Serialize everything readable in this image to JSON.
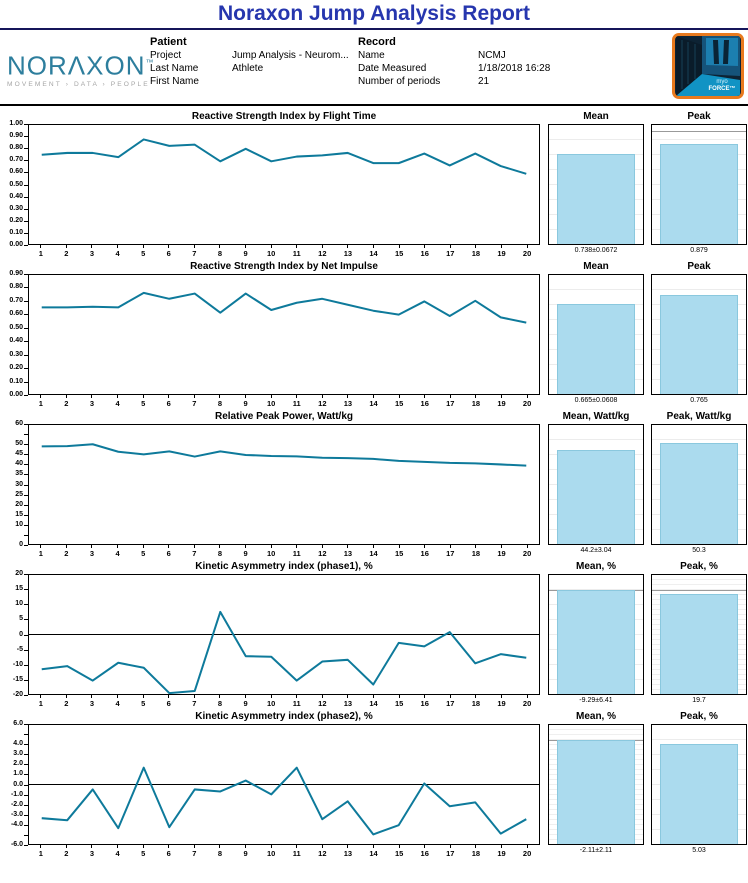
{
  "report": {
    "title": "Noraxon Jump Analysis Report"
  },
  "colors": {
    "title_blue": "#2636ae",
    "brand_teal": "#2d7e9d",
    "line_teal": "#0e7a9b",
    "bar_fill": "#abdbee",
    "bar_border": "#8ac8de",
    "logo_border_orange": "#e87a1e"
  },
  "header": {
    "brand": {
      "name": "NORAXON",
      "trademark": "™",
      "tagline": "MOVEMENT › DATA › PEOPLE"
    },
    "patient": {
      "section_label": "Patient",
      "fields": [
        {
          "label": "Project",
          "value": "Jump Analysis - Neurom..."
        },
        {
          "label": "Last Name",
          "value": "Athlete"
        },
        {
          "label": "First Name",
          "value": ""
        }
      ]
    },
    "record": {
      "section_label": "Record",
      "fields": [
        {
          "label": "Name",
          "value": "NCMJ"
        },
        {
          "label": "Date Measured",
          "value": "1/18/2018 16:28"
        },
        {
          "label": "Number of periods",
          "value": "21"
        }
      ]
    },
    "myoforce_logo": {
      "line1": "myo",
      "line2": "FORCE™"
    }
  },
  "chart_data": [
    {
      "type": "line",
      "title": "Reactive Strength Index by Flight Time",
      "categories": [
        1,
        2,
        3,
        4,
        5,
        6,
        7,
        8,
        9,
        10,
        11,
        12,
        13,
        14,
        15,
        16,
        17,
        18,
        19,
        20
      ],
      "values": [
        0.75,
        0.765,
        0.765,
        0.73,
        0.879,
        0.825,
        0.835,
        0.695,
        0.8,
        0.695,
        0.735,
        0.745,
        0.765,
        0.68,
        0.68,
        0.76,
        0.66,
        0.76,
        0.655,
        0.59
      ],
      "ylim": [
        0,
        1
      ],
      "yticks": [
        {
          "v": 1.0,
          "l": "1.00"
        },
        {
          "v": 0.9,
          "l": "0.90"
        },
        {
          "v": 0.8,
          "l": "0.80"
        },
        {
          "v": 0.7,
          "l": "0.70"
        },
        {
          "v": 0.6,
          "l": "0.60"
        },
        {
          "v": 0.5,
          "l": "0.50"
        },
        {
          "v": 0.4,
          "l": "0.40"
        },
        {
          "v": 0.3,
          "l": "0.30"
        },
        {
          "v": 0.2,
          "l": "0.20"
        },
        {
          "v": 0.1,
          "l": "0.10"
        },
        {
          "v": 0.0,
          "l": "0.00"
        }
      ],
      "zero_line": false,
      "grid": false,
      "legend": "none",
      "mini_bars": [
        {
          "label": "Mean",
          "value_text": "0.738±0.0672",
          "value": 0.738,
          "fill_pct": 76,
          "ref_top_pct": null,
          "fine_grid": false
        },
        {
          "label": "Peak",
          "value_text": "0.879",
          "value": 0.879,
          "fill_pct": 84,
          "ref_top_pct": 5,
          "fine_grid": false
        }
      ]
    },
    {
      "type": "line",
      "title": "Reactive Strength Index by Net Impulse",
      "categories": [
        1,
        2,
        3,
        4,
        5,
        6,
        7,
        8,
        9,
        10,
        11,
        12,
        13,
        14,
        15,
        16,
        17,
        18,
        19,
        20
      ],
      "values": [
        0.655,
        0.655,
        0.66,
        0.655,
        0.765,
        0.72,
        0.76,
        0.615,
        0.76,
        0.635,
        0.69,
        0.72,
        0.675,
        0.63,
        0.6,
        0.7,
        0.59,
        0.705,
        0.58,
        0.54
      ],
      "ylim": [
        0,
        0.9
      ],
      "yticks": [
        {
          "v": 0.9,
          "l": "0.90"
        },
        {
          "v": 0.8,
          "l": "0.80"
        },
        {
          "v": 0.7,
          "l": "0.70"
        },
        {
          "v": 0.6,
          "l": "0.60"
        },
        {
          "v": 0.5,
          "l": "0.50"
        },
        {
          "v": 0.4,
          "l": "0.40"
        },
        {
          "v": 0.3,
          "l": "0.30"
        },
        {
          "v": 0.2,
          "l": "0.20"
        },
        {
          "v": 0.1,
          "l": "0.10"
        },
        {
          "v": 0.0,
          "l": "0.00"
        }
      ],
      "zero_line": false,
      "grid": false,
      "legend": "none",
      "mini_bars": [
        {
          "label": "Mean",
          "value_text": "0.665±0.0608",
          "value": 0.665,
          "fill_pct": 76,
          "ref_top_pct": null,
          "fine_grid": false
        },
        {
          "label": "Peak",
          "value_text": "0.765",
          "value": 0.765,
          "fill_pct": 83,
          "ref_top_pct": null,
          "fine_grid": false
        }
      ]
    },
    {
      "type": "line",
      "title": "Relative Peak Power, Watt/kg",
      "categories": [
        1,
        2,
        3,
        4,
        5,
        6,
        7,
        8,
        9,
        10,
        11,
        12,
        13,
        14,
        15,
        16,
        17,
        18,
        19,
        20
      ],
      "values": [
        49.2,
        49.3,
        50.3,
        46.5,
        45.2,
        46.7,
        44.1,
        46.7,
        44.9,
        44.4,
        44.2,
        43.5,
        43.3,
        42.9,
        41.9,
        41.4,
        40.9,
        40.7,
        40.1,
        39.5
      ],
      "ylim": [
        0,
        60
      ],
      "yticks": [
        {
          "v": 60,
          "l": "60"
        },
        {
          "v": 55,
          "l": ""
        },
        {
          "v": 50,
          "l": "50"
        },
        {
          "v": 45,
          "l": "45"
        },
        {
          "v": 40,
          "l": "40"
        },
        {
          "v": 35,
          "l": "35"
        },
        {
          "v": 30,
          "l": "30"
        },
        {
          "v": 25,
          "l": "25"
        },
        {
          "v": 20,
          "l": "20"
        },
        {
          "v": 15,
          "l": "15"
        },
        {
          "v": 10,
          "l": "10"
        },
        {
          "v": 5,
          "l": ""
        },
        {
          "v": 0,
          "l": "0"
        }
      ],
      "zero_line": false,
      "grid": false,
      "legend": "none",
      "mini_bars": [
        {
          "label": "Mean, Watt/kg",
          "value_text": "44.2±3.04",
          "value": 44.2,
          "fill_pct": 79,
          "ref_top_pct": null,
          "fine_grid": false
        },
        {
          "label": "Peak, Watt/kg",
          "value_text": "50.3",
          "value": 50.3,
          "fill_pct": 85,
          "ref_top_pct": null,
          "fine_grid": false
        }
      ]
    },
    {
      "type": "line",
      "title": "Kinetic Asymmetry index (phase1), %",
      "categories": [
        1,
        2,
        3,
        4,
        5,
        6,
        7,
        8,
        9,
        10,
        11,
        12,
        13,
        14,
        15,
        16,
        17,
        18,
        19,
        20
      ],
      "values": [
        -11.7,
        -10.6,
        -15.5,
        -9.5,
        -11.2,
        -19.7,
        -19.0,
        7.6,
        -7.3,
        -7.5,
        -15.5,
        -9.1,
        -8.5,
        -16.8,
        -2.8,
        -4.0,
        0.8,
        -9.7,
        -6.6,
        -7.8
      ],
      "ylim": [
        -20,
        20
      ],
      "yticks": [
        {
          "v": 20,
          "l": "20"
        },
        {
          "v": 15,
          "l": "15"
        },
        {
          "v": 10,
          "l": "10"
        },
        {
          "v": 5,
          "l": "5"
        },
        {
          "v": 0,
          "l": "0"
        },
        {
          "v": -5,
          "l": "-5"
        },
        {
          "v": -10,
          "l": "-10"
        },
        {
          "v": -15,
          "l": "-15"
        },
        {
          "v": -20,
          "l": "-20"
        }
      ],
      "zero_line": true,
      "grid": false,
      "legend": "none",
      "mini_bars": [
        {
          "label": "Mean, %",
          "value_text": "-9.29±6.41",
          "value": -9.29,
          "fill_pct": 87,
          "ref_top_pct": 12.5,
          "fine_grid": false
        },
        {
          "label": "Peak, %",
          "value_text": "19.7",
          "value": 19.7,
          "fill_pct": 84,
          "ref_top_pct": 13,
          "fine_grid": true
        }
      ]
    },
    {
      "type": "line",
      "title": "Kinetic Asymmetry index (phase2), %",
      "categories": [
        1,
        2,
        3,
        4,
        5,
        6,
        7,
        8,
        9,
        10,
        11,
        12,
        13,
        14,
        15,
        16,
        17,
        18,
        19,
        20
      ],
      "values": [
        -3.4,
        -3.6,
        -0.5,
        -4.4,
        1.7,
        -4.3,
        -0.5,
        -0.7,
        0.4,
        -1.0,
        1.7,
        -3.5,
        -1.7,
        -5.03,
        -4.1,
        0.1,
        -2.2,
        -1.8,
        -4.95,
        -3.5
      ],
      "ylim": [
        -6,
        6
      ],
      "yticks": [
        {
          "v": 6,
          "l": "6.0"
        },
        {
          "v": 5,
          "l": ""
        },
        {
          "v": 4,
          "l": "4.0"
        },
        {
          "v": 3,
          "l": "3.0"
        },
        {
          "v": 2,
          "l": "2.0"
        },
        {
          "v": 1,
          "l": "1.0"
        },
        {
          "v": 0,
          "l": "0.0"
        },
        {
          "v": -1,
          "l": "-1.0"
        },
        {
          "v": -2,
          "l": "-2.0"
        },
        {
          "v": -3,
          "l": "-3.0"
        },
        {
          "v": -4,
          "l": "-4.0"
        },
        {
          "v": -5,
          "l": ""
        },
        {
          "v": -6,
          "l": "-6.0"
        }
      ],
      "zero_line": true,
      "grid": false,
      "legend": "none",
      "mini_bars": [
        {
          "label": "Mean, %",
          "value_text": "-2.11±2.11",
          "value": -2.11,
          "fill_pct": 87,
          "ref_top_pct": 12.5,
          "fine_grid": true
        },
        {
          "label": "Peak, %",
          "value_text": "5.03",
          "value": 5.03,
          "fill_pct": 84,
          "ref_top_pct": null,
          "fine_grid": false
        }
      ]
    }
  ]
}
